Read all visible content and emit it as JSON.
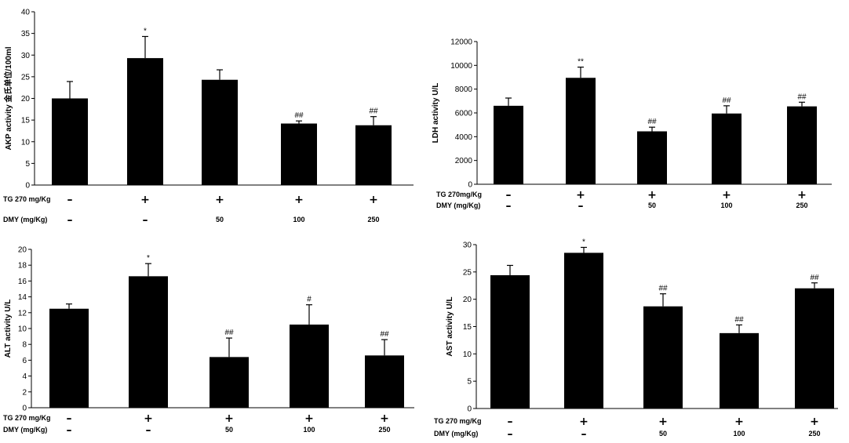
{
  "chart_data": [
    {
      "type": "bar",
      "ylabel": "AKP activity 金氏单位/100ml",
      "ylim": [
        0,
        40
      ],
      "yticks": [
        0,
        5,
        10,
        15,
        20,
        25,
        30,
        35,
        40
      ],
      "values": [
        20.0,
        29.3,
        24.3,
        14.2,
        13.8
      ],
      "errors": [
        3.9,
        5.0,
        2.3,
        0.6,
        2.0
      ],
      "significance": [
        "",
        "*",
        "",
        "##",
        "##"
      ],
      "rows": [
        {
          "label": "TG 270 mg/Kg",
          "values": [
            "–",
            "+",
            "+",
            "+",
            "+"
          ]
        },
        {
          "label": "DMY (mg/Kg)",
          "values": [
            "–",
            "–",
            "50",
            "100",
            "250"
          ]
        }
      ]
    },
    {
      "type": "bar",
      "ylabel": "LDH activity U/L",
      "ylim": [
        0,
        12000
      ],
      "yticks": [
        0,
        2000,
        4000,
        6000,
        8000,
        10000,
        12000
      ],
      "values": [
        6600,
        8950,
        4450,
        5950,
        6550
      ],
      "errors": [
        650,
        900,
        350,
        650,
        350
      ],
      "significance": [
        "",
        "**",
        "##",
        "##",
        "##"
      ],
      "rows": [
        {
          "label": "TG 270mg/Kg",
          "values": [
            "–",
            "+",
            "+",
            "+",
            "+"
          ]
        },
        {
          "label": "DMY (mg/Kg)",
          "values": [
            "–",
            "–",
            "50",
            "100",
            "250"
          ]
        }
      ]
    },
    {
      "type": "bar",
      "ylabel": "ALT activity U/L",
      "ylim": [
        0,
        20
      ],
      "yticks": [
        0,
        2,
        4,
        6,
        8,
        10,
        12,
        14,
        16,
        18,
        20
      ],
      "values": [
        12.5,
        16.6,
        6.4,
        10.5,
        6.6
      ],
      "errors": [
        0.6,
        1.6,
        2.4,
        2.5,
        2.0
      ],
      "significance": [
        "",
        "*",
        "##",
        "#",
        "##"
      ],
      "rows": [
        {
          "label": "TG 270 mg/Kg",
          "values": [
            "–",
            "+",
            "+",
            "+",
            "+"
          ]
        },
        {
          "label": "DMY (mg/Kg)",
          "values": [
            "–",
            "–",
            "50",
            "100",
            "250"
          ]
        }
      ]
    },
    {
      "type": "bar",
      "ylabel": "AST activity U/L",
      "ylim": [
        0,
        30
      ],
      "yticks": [
        0,
        5,
        10,
        15,
        20,
        25,
        30
      ],
      "values": [
        24.4,
        28.5,
        18.7,
        13.8,
        22.0
      ],
      "errors": [
        1.8,
        1.0,
        2.3,
        1.5,
        1.0
      ],
      "significance": [
        "",
        "*",
        "##",
        "##",
        "##"
      ],
      "rows": [
        {
          "label": "TG 270 mg/Kg",
          "values": [
            "–",
            "+",
            "+",
            "+",
            "+"
          ]
        },
        {
          "label": "DMY (mg/Kg)",
          "values": [
            "–",
            "–",
            "50",
            "100",
            "250"
          ]
        }
      ]
    }
  ]
}
